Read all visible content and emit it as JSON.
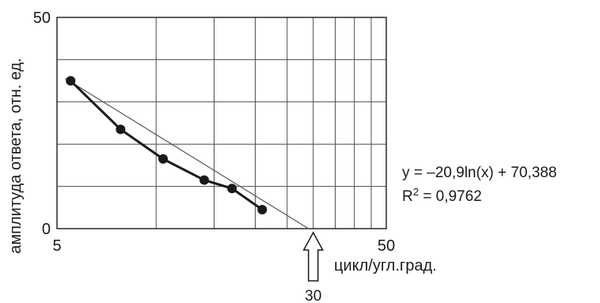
{
  "chart_data": {
    "type": "scatter",
    "xlabel": "цикл/угл.град.",
    "ylabel": "амплитуда ответа, отн. ед.",
    "x_scale": "log",
    "xlim": [
      5,
      50
    ],
    "ylim": [
      0,
      50
    ],
    "x_tick_labels": [
      "5",
      "50"
    ],
    "y_tick_labels": [
      "0",
      "50"
    ],
    "grid": true,
    "x_gridlines": [
      5,
      10,
      15,
      20,
      25,
      30,
      35,
      40,
      45,
      50
    ],
    "y_gridlines": [
      0,
      10,
      20,
      30,
      40,
      50
    ],
    "series": [
      {
        "x": [
          5.5,
          7.8,
          10.5,
          14,
          17,
          21
        ],
        "y": [
          35,
          23.5,
          16.5,
          11.5,
          9.5,
          4.5
        ],
        "style": "line-markers"
      }
    ],
    "trendline": {
      "type": "log",
      "a": -20.9,
      "b": 70.388,
      "equation": "y = –20,9ln(x) + 70,388",
      "r2_label": "R",
      "r2_sup": "2",
      "r2_value": " = 0,9762"
    },
    "annotation": {
      "arrow_direction": "up",
      "label": "30",
      "x": 30
    },
    "colors": {
      "series": "#1a1a1a",
      "trendline": "#555555",
      "grid": "#4d4d4d"
    }
  }
}
